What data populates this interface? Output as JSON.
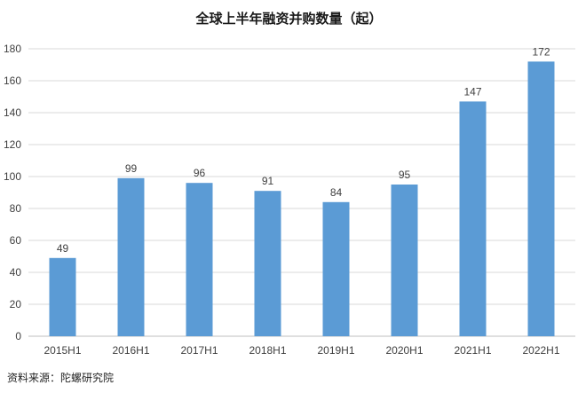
{
  "chart_data": {
    "type": "bar",
    "title": "全球上半年融资并购数量（起）",
    "categories": [
      "2015H1",
      "2016H1",
      "2017H1",
      "2018H1",
      "2019H1",
      "2020H1",
      "2021H1",
      "2022H1"
    ],
    "values": [
      49,
      99,
      96,
      91,
      84,
      95,
      147,
      172
    ],
    "xlabel": "",
    "ylabel": "",
    "ylim": [
      0,
      180
    ],
    "yticks": [
      0,
      20,
      40,
      60,
      80,
      100,
      120,
      140,
      160,
      180
    ],
    "grid": true,
    "legend": "none",
    "bar_color": "#5b9bd5",
    "data_labels": true
  },
  "source": "资料来源：陀螺研究院"
}
